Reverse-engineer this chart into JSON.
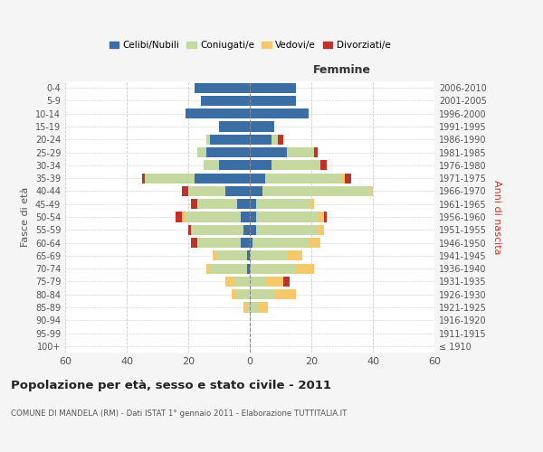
{
  "age_groups": [
    "100+",
    "95-99",
    "90-94",
    "85-89",
    "80-84",
    "75-79",
    "70-74",
    "65-69",
    "60-64",
    "55-59",
    "50-54",
    "45-49",
    "40-44",
    "35-39",
    "30-34",
    "25-29",
    "20-24",
    "15-19",
    "10-14",
    "5-9",
    "0-4"
  ],
  "birth_years": [
    "≤ 1910",
    "1911-1915",
    "1916-1920",
    "1921-1925",
    "1926-1930",
    "1931-1935",
    "1936-1940",
    "1941-1945",
    "1946-1950",
    "1951-1955",
    "1956-1960",
    "1961-1965",
    "1966-1970",
    "1971-1975",
    "1976-1980",
    "1981-1985",
    "1986-1990",
    "1991-1995",
    "1996-2000",
    "2001-2005",
    "2006-2010"
  ],
  "colors": {
    "celibe": "#3a6ea5",
    "coniugato": "#c5d8a0",
    "vedovo": "#f5c96b",
    "divorziato": "#c0312b"
  },
  "males": {
    "celibe": [
      0,
      0,
      0,
      0,
      0,
      0,
      1,
      1,
      3,
      2,
      3,
      4,
      8,
      18,
      10,
      14,
      13,
      10,
      21,
      16,
      18
    ],
    "coniugato": [
      0,
      0,
      0,
      1,
      4,
      5,
      12,
      10,
      14,
      17,
      18,
      13,
      12,
      16,
      5,
      3,
      1,
      0,
      0,
      0,
      0
    ],
    "vedovo": [
      0,
      0,
      0,
      1,
      2,
      3,
      1,
      1,
      0,
      0,
      1,
      0,
      0,
      0,
      0,
      0,
      0,
      0,
      0,
      0,
      0
    ],
    "divorziato": [
      0,
      0,
      0,
      0,
      0,
      0,
      0,
      0,
      2,
      1,
      2,
      2,
      2,
      1,
      0,
      0,
      0,
      0,
      0,
      0,
      0
    ]
  },
  "females": {
    "nubile": [
      0,
      0,
      0,
      0,
      0,
      0,
      0,
      0,
      1,
      2,
      2,
      2,
      4,
      5,
      7,
      12,
      7,
      8,
      19,
      15,
      15
    ],
    "coniugata": [
      0,
      0,
      0,
      3,
      8,
      5,
      15,
      12,
      18,
      20,
      20,
      18,
      35,
      25,
      16,
      9,
      2,
      0,
      0,
      0,
      0
    ],
    "vedova": [
      0,
      0,
      0,
      3,
      7,
      6,
      6,
      5,
      4,
      2,
      2,
      1,
      1,
      1,
      0,
      0,
      0,
      0,
      0,
      0,
      0
    ],
    "divorziata": [
      0,
      0,
      0,
      0,
      0,
      2,
      0,
      0,
      0,
      0,
      1,
      0,
      0,
      2,
      2,
      1,
      2,
      0,
      0,
      0,
      0
    ]
  },
  "xlim": 60,
  "title": "Popolazione per età, sesso e stato civile - 2011",
  "subtitle": "COMUNE DI MANDELA (RM) - Dati ISTAT 1° gennaio 2011 - Elaborazione TUTTITALIA.IT",
  "ylabel_left": "Fasce di età",
  "ylabel_right": "Anni di nascita",
  "xlabel_females": "Femmine",
  "legend_labels": [
    "Celibi/Nubili",
    "Coniugati/e",
    "Vedovi/e",
    "Divorziati/e"
  ],
  "bg_color": "#f5f5f5",
  "plot_bg_color": "#ffffff",
  "xticks": [
    -60,
    -40,
    -20,
    0,
    20,
    40,
    60
  ]
}
